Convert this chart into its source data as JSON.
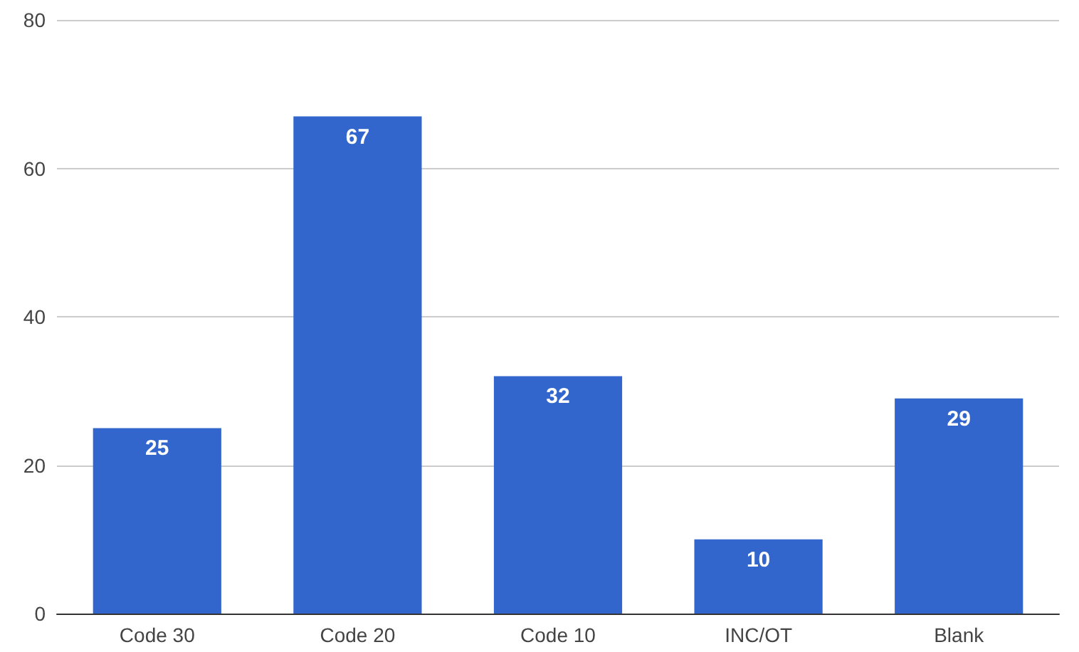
{
  "chart_data": {
    "type": "bar",
    "categories": [
      "Code 30",
      "Code 20",
      "Code 10",
      "INC/OT",
      "Blank"
    ],
    "values": [
      25,
      67,
      32,
      10,
      29
    ],
    "color": "#3366cc",
    "ylim": [
      0,
      80
    ],
    "yticks": [
      0,
      20,
      40,
      60,
      80
    ],
    "grid": "y",
    "data_labels": true
  }
}
